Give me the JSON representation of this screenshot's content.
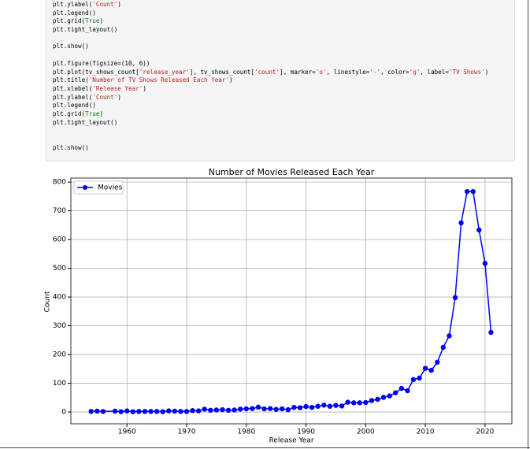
{
  "code": {
    "blocks": [
      [
        "plt.ylabel('Count')",
        "plt.legend()",
        "plt.grid(True)",
        "plt.tight_layout()"
      ],
      [
        "plt.show()"
      ],
      [
        "plt.figure(figsize=(10, 6))",
        "plt.plot(tv_shows_count['release_year'], tv_shows_count['count'], marker='o', linestyle='-', color='g', label='TV Shows')",
        "plt.title('Number of TV Shows Released Each Year')",
        "plt.xlabel('Release Year')",
        "plt.ylabel('Count')",
        "plt.legend()",
        "plt.grid(True)",
        "plt.tight_layout()"
      ],
      [
        "plt.show()"
      ]
    ]
  },
  "chart_data": {
    "type": "line",
    "title": "Number of Movies Released Each Year",
    "x_label": "Release Year",
    "y_label": "Count",
    "x": [
      1954,
      1955,
      1956,
      1958,
      1959,
      1960,
      1961,
      1962,
      1963,
      1964,
      1965,
      1966,
      1967,
      1968,
      1969,
      1970,
      1971,
      1972,
      1973,
      1974,
      1975,
      1976,
      1977,
      1978,
      1979,
      1980,
      1981,
      1982,
      1983,
      1984,
      1985,
      1986,
      1987,
      1988,
      1989,
      1990,
      1991,
      1992,
      1993,
      1994,
      1995,
      1996,
      1997,
      1998,
      1999,
      2000,
      2001,
      2002,
      2003,
      2004,
      2005,
      2006,
      2007,
      2008,
      2009,
      2010,
      2011,
      2012,
      2013,
      2014,
      2015,
      2016,
      2017,
      2018,
      2019,
      2020,
      2021
    ],
    "series": [
      {
        "name": "Movies",
        "color": "#0000ff",
        "values": [
          2,
          3,
          2,
          3,
          1,
          4,
          1,
          2,
          2,
          2,
          2,
          1,
          4,
          3,
          2,
          2,
          5,
          4,
          10,
          6,
          7,
          8,
          6,
          7,
          10,
          11,
          12,
          17,
          11,
          12,
          9,
          11,
          8,
          16,
          15,
          19,
          16,
          20,
          24,
          20,
          23,
          21,
          34,
          32,
          32,
          33,
          40,
          44,
          51,
          56,
          67,
          82,
          74,
          113,
          118,
          152,
          145,
          173,
          225,
          265,
          398,
          658,
          767,
          767,
          633,
          517,
          277
        ]
      }
    ],
    "xlim": [
      1950.6,
      2024.5
    ],
    "ylim": [
      -41,
      814
    ],
    "xticks": [
      1960,
      1970,
      1980,
      1990,
      2000,
      2010,
      2020
    ],
    "yticks": [
      0,
      100,
      200,
      300,
      400,
      500,
      600,
      700,
      800
    ],
    "grid": true,
    "legend": "upper left"
  }
}
